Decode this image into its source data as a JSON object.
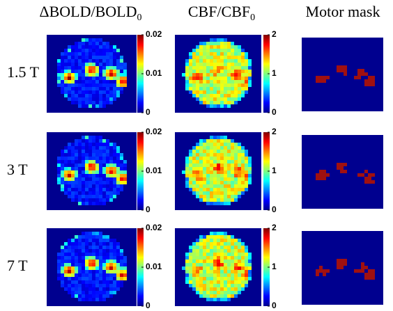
{
  "columns": [
    {
      "title": "ΔBOLD/BOLD",
      "title_sub": "0"
    },
    {
      "title": "CBF/CBF",
      "title_sub": "0"
    },
    {
      "title": "Motor mask"
    }
  ],
  "rows": [
    {
      "label": "1.5 T",
      "bold_ticks": [
        0.02,
        0.01,
        0
      ],
      "cbf_ticks": [
        2,
        1,
        0
      ]
    },
    {
      "label": "3 T",
      "bold_ticks": [
        0.02,
        0.01,
        0
      ],
      "cbf_ticks": [
        2,
        1,
        0
      ]
    },
    {
      "label": "7 T",
      "bold_ticks": [
        0.02,
        0.01,
        0
      ],
      "cbf_ticks": [
        2,
        1,
        0
      ]
    }
  ]
}
